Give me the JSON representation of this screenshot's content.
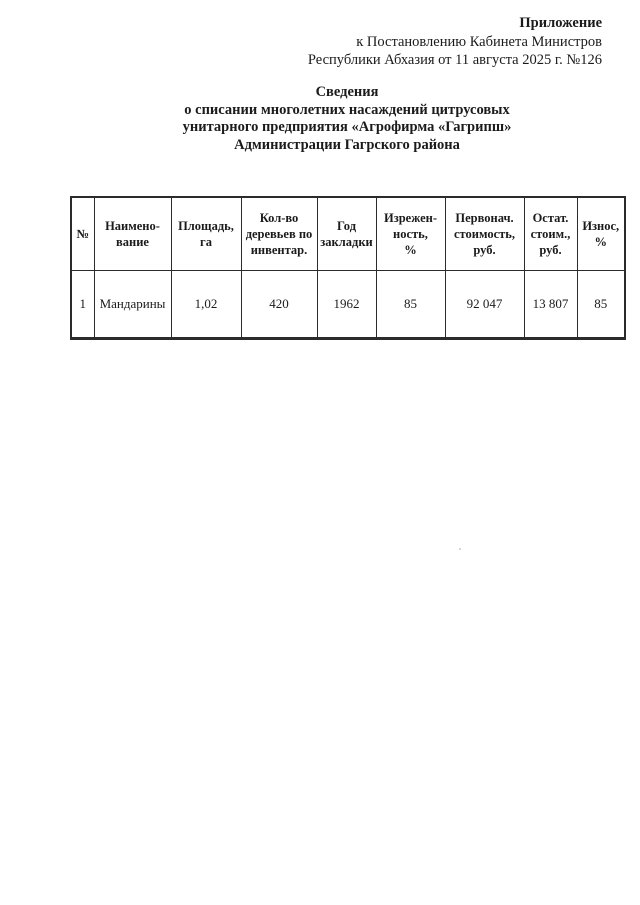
{
  "document": {
    "annex": {
      "lines": [
        "Приложение",
        "к Постановлению Кабинета Министров",
        "Республики Абхазия от 11 августа 2025 г. №126"
      ]
    },
    "title": {
      "lines": [
        "Сведения",
        "о списании многолетних насаждений цитрусовых",
        "унитарного предприятия «Агрофирма «Гагрипш»",
        "Администрации Гагрского района"
      ]
    }
  },
  "table": {
    "headers": [
      "№",
      "Наимено-\nвание",
      "Площадь,\nга",
      "Кол-во\nдеревьев по\nинвентар.",
      "Год\nзакладки",
      "Изрежен-\nность,\n%",
      "Первонач.\nстоимость,\nруб.",
      "Остат.\nстоим.,\nруб.",
      "Износ,\n%"
    ],
    "rows": [
      [
        "1",
        "Мандарины",
        "1,02",
        "420",
        "1962",
        "85",
        "92 047",
        "13 807",
        "85"
      ]
    ]
  },
  "colors": {
    "text": "#1b1b1b",
    "border": "#2b2b2b",
    "page_background": "#ffffff"
  }
}
